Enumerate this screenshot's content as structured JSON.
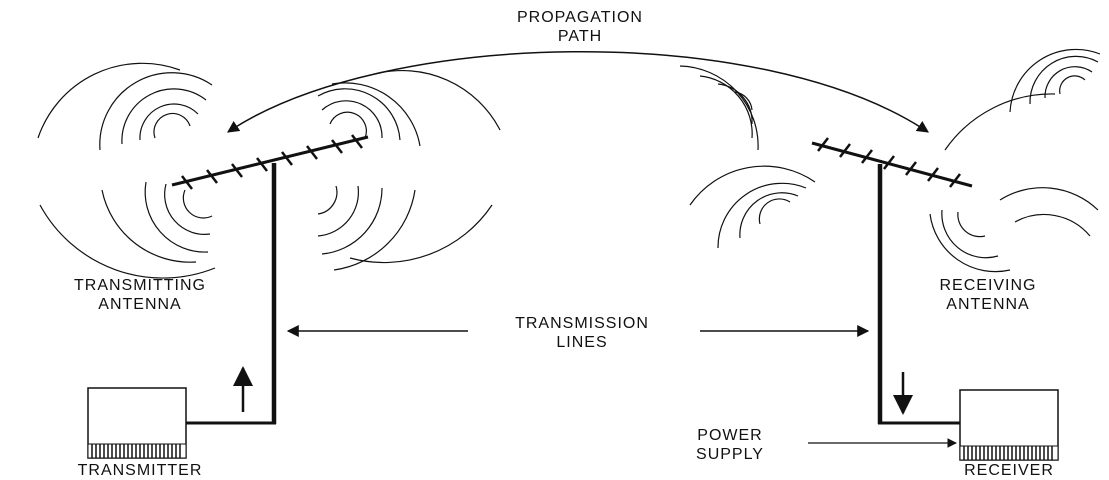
{
  "labels": {
    "propagation_path": [
      "PROPAGATION",
      "PATH"
    ],
    "transmitting_antenna": [
      "TRANSMITTING",
      "ANTENNA"
    ],
    "receiving_antenna": [
      "RECEIVING",
      "ANTENNA"
    ],
    "transmission_lines": [
      "TRANSMISSION",
      "LINES"
    ],
    "power_supply": [
      "POWER",
      "SUPPLY"
    ],
    "transmitter": "TRANSMITTER",
    "receiver": "RECEIVER"
  },
  "colors": {
    "ink": "#111111",
    "background": "#ffffff"
  }
}
